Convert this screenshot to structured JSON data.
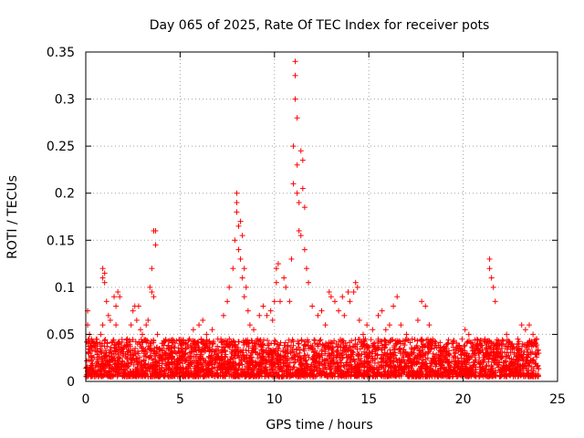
{
  "chart_data": {
    "type": "scatter",
    "title": "Day 065 of 2025, Rate Of TEC Index for receiver pots",
    "xlabel": "GPS time / hours",
    "ylabel": "ROTI / TECUs",
    "xlim": [
      0,
      25
    ],
    "ylim": [
      0,
      0.35
    ],
    "xticks": [
      0,
      5,
      10,
      15,
      20,
      25
    ],
    "xtick_labels": [
      "0",
      "5",
      "10",
      "15",
      "20",
      "25"
    ],
    "yticks": [
      0,
      0.05,
      0.1,
      0.15,
      0.2,
      0.25,
      0.3,
      0.35
    ],
    "ytick_labels": [
      "0",
      "0.05",
      "0.1",
      "0.15",
      "0.2",
      "0.25",
      "0.3",
      "0.35"
    ],
    "grid": true,
    "marker": "+",
    "color": "#ff0000",
    "series": [
      {
        "points": [
          [
            0.1,
            0.075
          ],
          [
            0.1,
            0.06
          ],
          [
            0.2,
            0.05
          ],
          [
            0.3,
            0.045
          ],
          [
            0.5,
            0.04
          ],
          [
            0.6,
            0.035
          ],
          [
            0.8,
            0.05
          ],
          [
            0.9,
            0.06
          ],
          [
            0.9,
            0.11
          ],
          [
            0.9,
            0.12
          ],
          [
            1.0,
            0.115
          ],
          [
            1.0,
            0.105
          ],
          [
            1.1,
            0.085
          ],
          [
            1.2,
            0.07
          ],
          [
            1.3,
            0.065
          ],
          [
            1.5,
            0.09
          ],
          [
            1.6,
            0.08
          ],
          [
            1.6,
            0.06
          ],
          [
            1.7,
            0.095
          ],
          [
            1.8,
            0.09
          ],
          [
            2.0,
            0.035
          ],
          [
            2.2,
            0.045
          ],
          [
            2.4,
            0.06
          ],
          [
            2.5,
            0.075
          ],
          [
            2.6,
            0.08
          ],
          [
            2.7,
            0.065
          ],
          [
            2.8,
            0.08
          ],
          [
            2.9,
            0.055
          ],
          [
            3.0,
            0.05
          ],
          [
            3.2,
            0.06
          ],
          [
            3.3,
            0.065
          ],
          [
            3.4,
            0.1
          ],
          [
            3.5,
            0.095
          ],
          [
            3.5,
            0.12
          ],
          [
            3.6,
            0.09
          ],
          [
            3.6,
            0.16
          ],
          [
            3.7,
            0.16
          ],
          [
            3.7,
            0.145
          ],
          [
            3.8,
            0.05
          ],
          [
            3.9,
            0.035
          ],
          [
            4.3,
            0.035
          ],
          [
            4.6,
            0.03
          ],
          [
            5.3,
            0.035
          ],
          [
            5.5,
            0.045
          ],
          [
            5.7,
            0.055
          ],
          [
            6.0,
            0.06
          ],
          [
            6.2,
            0.065
          ],
          [
            6.4,
            0.05
          ],
          [
            6.7,
            0.055
          ],
          [
            7.0,
            0.045
          ],
          [
            7.3,
            0.07
          ],
          [
            7.5,
            0.085
          ],
          [
            7.6,
            0.1
          ],
          [
            7.8,
            0.12
          ],
          [
            7.9,
            0.15
          ],
          [
            8.0,
            0.18
          ],
          [
            8.0,
            0.19
          ],
          [
            8.0,
            0.2
          ],
          [
            8.1,
            0.165
          ],
          [
            8.1,
            0.14
          ],
          [
            8.2,
            0.17
          ],
          [
            8.2,
            0.13
          ],
          [
            8.3,
            0.155
          ],
          [
            8.3,
            0.11
          ],
          [
            8.4,
            0.12
          ],
          [
            8.4,
            0.09
          ],
          [
            8.5,
            0.1
          ],
          [
            8.6,
            0.075
          ],
          [
            8.7,
            0.06
          ],
          [
            8.9,
            0.055
          ],
          [
            9.2,
            0.07
          ],
          [
            9.4,
            0.08
          ],
          [
            9.6,
            0.07
          ],
          [
            9.8,
            0.075
          ],
          [
            9.9,
            0.065
          ],
          [
            10.0,
            0.085
          ],
          [
            10.1,
            0.105
          ],
          [
            10.1,
            0.12
          ],
          [
            10.2,
            0.125
          ],
          [
            10.3,
            0.085
          ],
          [
            10.5,
            0.11
          ],
          [
            10.6,
            0.1
          ],
          [
            10.8,
            0.085
          ],
          [
            10.9,
            0.13
          ],
          [
            11.0,
            0.21
          ],
          [
            11.0,
            0.25
          ],
          [
            11.1,
            0.3
          ],
          [
            11.1,
            0.325
          ],
          [
            11.1,
            0.34
          ],
          [
            11.2,
            0.28
          ],
          [
            11.2,
            0.23
          ],
          [
            11.2,
            0.2
          ],
          [
            11.3,
            0.19
          ],
          [
            11.3,
            0.16
          ],
          [
            11.4,
            0.245
          ],
          [
            11.4,
            0.155
          ],
          [
            11.5,
            0.235
          ],
          [
            11.5,
            0.205
          ],
          [
            11.6,
            0.185
          ],
          [
            11.6,
            0.14
          ],
          [
            11.7,
            0.12
          ],
          [
            11.8,
            0.105
          ],
          [
            12.0,
            0.08
          ],
          [
            12.3,
            0.07
          ],
          [
            12.5,
            0.075
          ],
          [
            12.7,
            0.06
          ],
          [
            12.9,
            0.095
          ],
          [
            13.0,
            0.09
          ],
          [
            13.2,
            0.085
          ],
          [
            13.4,
            0.075
          ],
          [
            13.6,
            0.09
          ],
          [
            13.7,
            0.07
          ],
          [
            13.9,
            0.095
          ],
          [
            14.0,
            0.085
          ],
          [
            14.2,
            0.095
          ],
          [
            14.3,
            0.105
          ],
          [
            14.4,
            0.1
          ],
          [
            14.5,
            0.065
          ],
          [
            14.7,
            0.05
          ],
          [
            14.9,
            0.06
          ],
          [
            15.2,
            0.055
          ],
          [
            15.5,
            0.07
          ],
          [
            15.7,
            0.075
          ],
          [
            15.9,
            0.055
          ],
          [
            16.1,
            0.06
          ],
          [
            16.3,
            0.08
          ],
          [
            16.5,
            0.09
          ],
          [
            16.7,
            0.06
          ],
          [
            17.0,
            0.05
          ],
          [
            17.3,
            0.045
          ],
          [
            17.6,
            0.065
          ],
          [
            17.8,
            0.085
          ],
          [
            18.0,
            0.08
          ],
          [
            18.2,
            0.06
          ],
          [
            18.5,
            0.04
          ],
          [
            18.8,
            0.035
          ],
          [
            19.2,
            0.03
          ],
          [
            19.6,
            0.025
          ],
          [
            20.1,
            0.055
          ],
          [
            20.3,
            0.05
          ],
          [
            20.6,
            0.03
          ],
          [
            20.9,
            0.04
          ],
          [
            21.2,
            0.03
          ],
          [
            21.4,
            0.12
          ],
          [
            21.4,
            0.13
          ],
          [
            21.5,
            0.11
          ],
          [
            21.6,
            0.1
          ],
          [
            21.7,
            0.085
          ],
          [
            22.0,
            0.04
          ],
          [
            22.3,
            0.05
          ],
          [
            22.6,
            0.04
          ],
          [
            22.9,
            0.045
          ],
          [
            23.1,
            0.06
          ],
          [
            23.3,
            0.055
          ],
          [
            23.5,
            0.06
          ],
          [
            23.7,
            0.05
          ],
          [
            23.9,
            0.045
          ],
          [
            24.0,
            0.03
          ]
        ]
      }
    ],
    "dense_band": {
      "x_range": [
        0,
        24
      ],
      "y_range": [
        0.005,
        0.045
      ],
      "note_visible": false
    }
  }
}
